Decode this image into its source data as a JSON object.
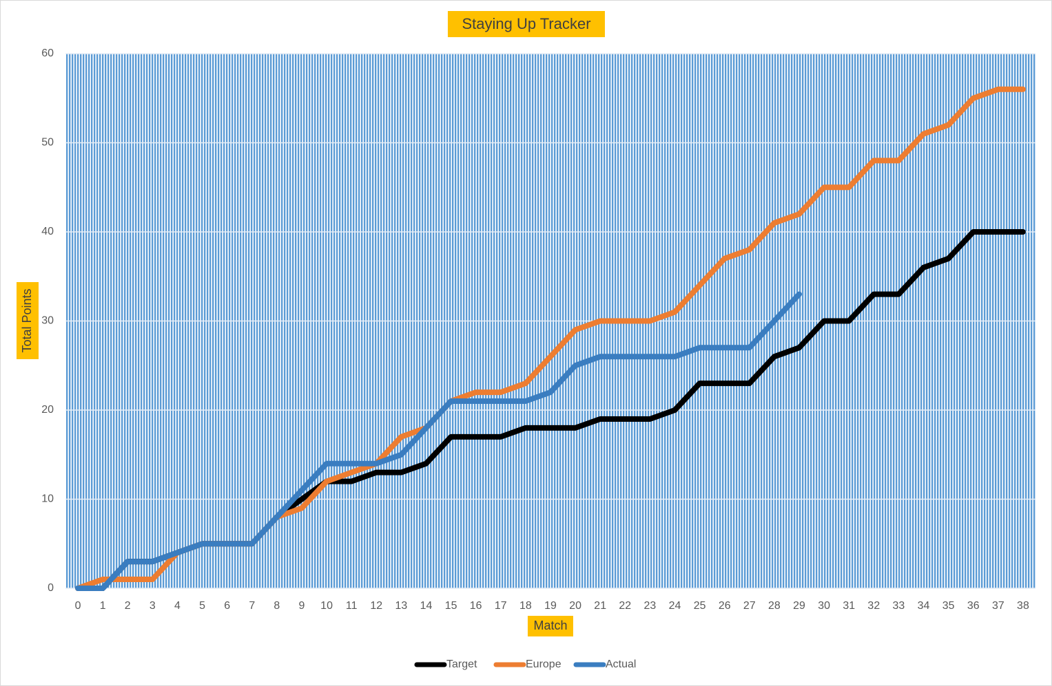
{
  "chart_data": {
    "type": "line",
    "title": "Staying Up Tracker",
    "x_label": "Match",
    "y_label": "Total Points",
    "categories": [
      "0",
      "1",
      "2",
      "3",
      "4",
      "5",
      "6",
      "7",
      "8",
      "9",
      "10",
      "11",
      "12",
      "13",
      "14",
      "15",
      "16",
      "17",
      "18",
      "19",
      "20",
      "21",
      "22",
      "23",
      "24",
      "25",
      "26",
      "27",
      "28",
      "29",
      "30",
      "31",
      "32",
      "33",
      "34",
      "35",
      "36",
      "37",
      "38"
    ],
    "series": [
      {
        "name": "Target",
        "color": "#000000",
        "values": [
          0,
          0,
          3,
          3,
          4,
          5,
          5,
          5,
          8,
          10,
          12,
          12,
          13,
          13,
          14,
          17,
          17,
          17,
          18,
          18,
          18,
          19,
          19,
          19,
          20,
          23,
          23,
          23,
          26,
          27,
          30,
          30,
          33,
          33,
          36,
          37,
          40,
          40,
          40
        ]
      },
      {
        "name": "Europe",
        "color": "#ed7d31",
        "values": [
          0,
          1,
          1,
          1,
          4,
          5,
          5,
          5,
          8,
          9,
          12,
          13,
          14,
          17,
          18,
          21,
          22,
          22,
          23,
          26,
          29,
          30,
          30,
          30,
          31,
          34,
          37,
          38,
          41,
          42,
          45,
          45,
          48,
          48,
          51,
          52,
          55,
          56,
          56
        ]
      },
      {
        "name": "Actual",
        "color": "#3a7dc0",
        "values": [
          0,
          0,
          3,
          3,
          4,
          5,
          5,
          5,
          8,
          11,
          14,
          14,
          14,
          15,
          18,
          21,
          21,
          21,
          21,
          22,
          25,
          26,
          26,
          26,
          26,
          27,
          27,
          27,
          30,
          33,
          null,
          null,
          null,
          null,
          null,
          null,
          null,
          null,
          null
        ]
      }
    ],
    "ylim": [
      0,
      60
    ],
    "yticks": [
      0,
      10,
      20,
      30,
      40,
      50,
      60
    ],
    "grid": true,
    "legend": "bottom"
  }
}
